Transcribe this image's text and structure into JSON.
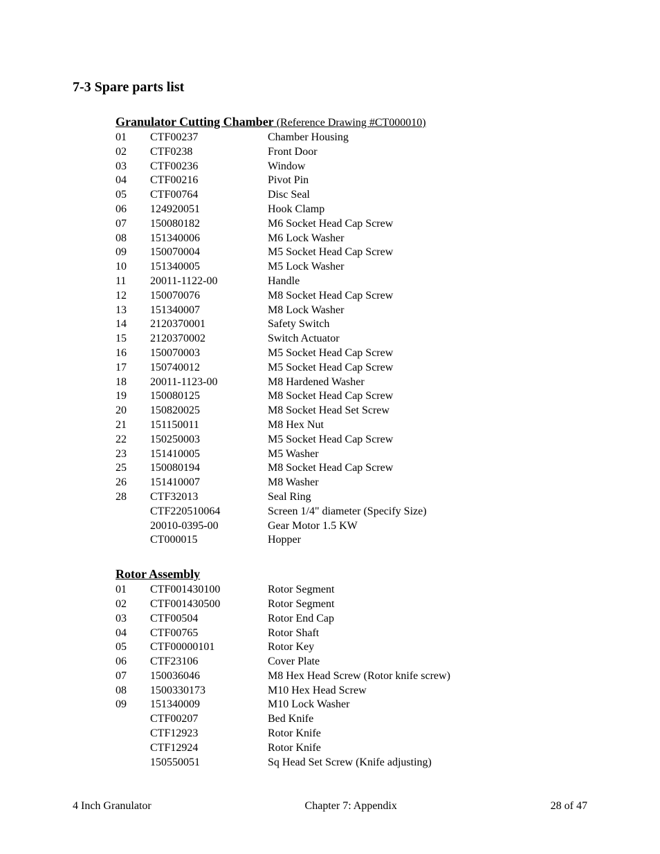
{
  "section_title": "7-3 Spare parts list",
  "sections": [
    {
      "title": "Granulator Cutting Chamber",
      "note": " (Reference Drawing #CT000010)",
      "rows": [
        {
          "num": "01",
          "part": "CTF00237",
          "desc": "Chamber Housing"
        },
        {
          "num": "02",
          "part": "CTF0238",
          "desc": "Front Door"
        },
        {
          "num": "03",
          "part": "CTF00236",
          "desc": "Window"
        },
        {
          "num": "04",
          "part": "CTF00216",
          "desc": "Pivot Pin"
        },
        {
          "num": "05",
          "part": "CTF00764",
          "desc": "Disc Seal"
        },
        {
          "num": "06",
          "part": "124920051",
          "desc": "Hook Clamp"
        },
        {
          "num": "07",
          "part": "150080182",
          "desc": "M6 Socket Head Cap Screw"
        },
        {
          "num": "08",
          "part": "151340006",
          "desc": "M6 Lock Washer"
        },
        {
          "num": "09",
          "part": "150070004",
          "desc": "M5 Socket Head Cap Screw"
        },
        {
          "num": "10",
          "part": "151340005",
          "desc": "M5 Lock Washer"
        },
        {
          "num": "11",
          "part": "20011-1122-00",
          "desc": "Handle"
        },
        {
          "num": "12",
          "part": "150070076",
          "desc": "M8 Socket Head Cap Screw"
        },
        {
          "num": "13",
          "part": "151340007",
          "desc": "M8 Lock Washer"
        },
        {
          "num": "14",
          "part": "2120370001",
          "desc": "Safety Switch"
        },
        {
          "num": "15",
          "part": "2120370002",
          "desc": "Switch Actuator"
        },
        {
          "num": "16",
          "part": "150070003",
          "desc": "M5 Socket Head Cap Screw"
        },
        {
          "num": "17",
          "part": "150740012",
          "desc": "M5 Socket Head Cap Screw"
        },
        {
          "num": "18",
          "part": "20011-1123-00",
          "desc": "M8 Hardened Washer"
        },
        {
          "num": "19",
          "part": "150080125",
          "desc": "M8 Socket Head Cap Screw"
        },
        {
          "num": "20",
          "part": "150820025",
          "desc": "M8 Socket Head Set Screw"
        },
        {
          "num": "21",
          "part": "151150011",
          "desc": "M8 Hex Nut"
        },
        {
          "num": "22",
          "part": "150250003",
          "desc": "M5 Socket Head Cap Screw"
        },
        {
          "num": "23",
          "part": "151410005",
          "desc": "M5 Washer"
        },
        {
          "num": "25",
          "part": "150080194",
          "desc": "M8 Socket Head Cap Screw"
        },
        {
          "num": "26",
          "part": "151410007",
          "desc": "M8 Washer"
        },
        {
          "num": "28",
          "part": "CTF32013",
          "desc": "Seal Ring"
        },
        {
          "num": "",
          "part": "CTF220510064",
          "desc": "Screen 1/4\" diameter (Specify Size)"
        },
        {
          "num": "",
          "part": "20010-0395-00",
          "desc": "Gear Motor 1.5 KW"
        },
        {
          "num": "",
          "part": "CT000015",
          "desc": "Hopper"
        }
      ]
    },
    {
      "title": "Rotor Assembly",
      "note": "",
      "rows": [
        {
          "num": "01",
          "part": "CTF001430100",
          "desc": "Rotor Segment"
        },
        {
          "num": "02",
          "part": "CTF001430500",
          "desc": "Rotor Segment"
        },
        {
          "num": "03",
          "part": "CTF00504",
          "desc": "Rotor End Cap"
        },
        {
          "num": "04",
          "part": "CTF00765",
          "desc": "Rotor Shaft"
        },
        {
          "num": "05",
          "part": "CTF00000101",
          "desc": "Rotor Key"
        },
        {
          "num": "06",
          "part": "CTF23106",
          "desc": "Cover Plate"
        },
        {
          "num": "07",
          "part": "150036046",
          "desc": "M8 Hex Head Screw (Rotor knife screw)"
        },
        {
          "num": "08",
          "part": "1500330173",
          "desc": "M10 Hex Head Screw"
        },
        {
          "num": "09",
          "part": "151340009",
          "desc": "M10 Lock Washer"
        },
        {
          "num": "",
          "part": "CTF00207",
          "desc": "Bed Knife"
        },
        {
          "num": "",
          "part": "CTF12923",
          "desc": "Rotor Knife"
        },
        {
          "num": "",
          "part": "CTF12924",
          "desc": "Rotor Knife"
        },
        {
          "num": "",
          "part": "150550051",
          "desc": "Sq Head Set Screw (Knife adjusting)"
        }
      ]
    }
  ],
  "footer": {
    "left": "4 Inch Granulator",
    "center": "Chapter 7: Appendix",
    "right": "28 of 47"
  }
}
